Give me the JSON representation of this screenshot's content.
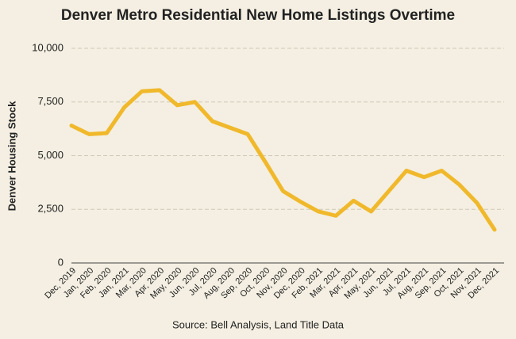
{
  "chart_data": {
    "type": "line",
    "title": "Denver Metro Residential New Home Listings Overtime",
    "y_label": "Denver Housing Stock",
    "source": "Source: Bell Analysis, Land Title Data",
    "categories": [
      "Dec, 2019",
      "Jan, 2020",
      "Feb, 2020",
      "Jan, 2021",
      "Mar, 2020",
      "Apr, 2020",
      "May, 2020",
      "Jun, 2020",
      "Jul, 2020",
      "Aug, 2020",
      "Sep, 2020",
      "Oct, 2020",
      "Nov, 2020",
      "Dec, 2020",
      "Feb, 2021",
      "Mar, 2021",
      "Apr, 2021",
      "May, 2021",
      "Jun, 2021",
      "Jul, 2021",
      "Aug, 2021",
      "Sep, 2021",
      "Oct, 2021",
      "Nov, 2021",
      "Dec, 2021"
    ],
    "values": [
      6400,
      6000,
      6050,
      7250,
      8000,
      8050,
      7350,
      7500,
      6600,
      6300,
      6000,
      4700,
      3350,
      2850,
      2400,
      2200,
      2900,
      2400,
      3350,
      4300,
      4000,
      4300,
      3650,
      2800,
      1550
    ],
    "color": "#f0b82b",
    "ylim": [
      0,
      10000
    ],
    "yticks": [
      0,
      {
        "value": 2500,
        "label": "2,500"
      },
      {
        "value": 5000,
        "label": "5,000"
      },
      {
        "value": 7500,
        "label": "7,500"
      },
      {
        "value": 10000,
        "label": "10,000"
      }
    ],
    "grid": true
  }
}
